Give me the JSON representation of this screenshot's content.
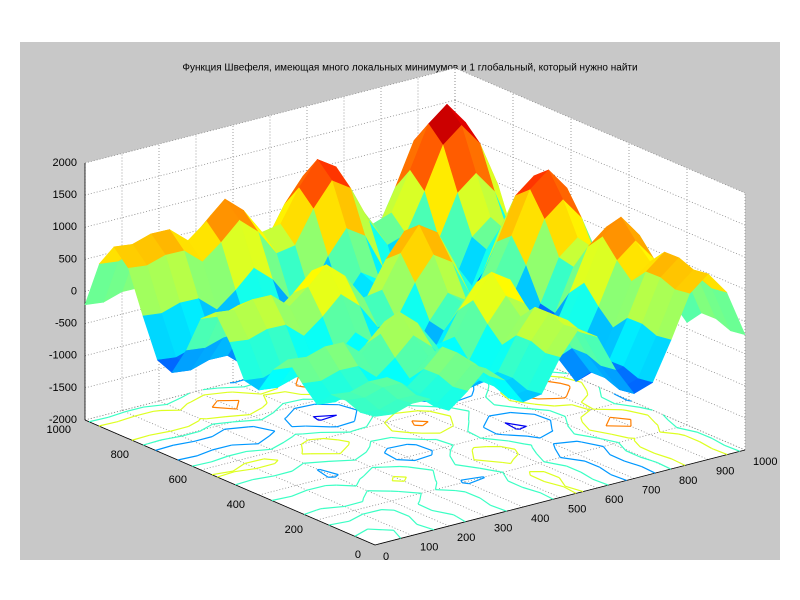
{
  "chart_data": {
    "type": "surface",
    "title": "Функция Швефеля, имеющая много локальных минимумов и 1 глобальный, который нужно найти",
    "x": [
      0,
      50,
      100,
      150,
      200,
      250,
      300,
      350,
      400,
      450,
      500,
      550,
      600,
      650,
      700,
      750,
      800,
      850,
      900,
      950,
      1000
    ],
    "y": [
      0,
      50,
      100,
      150,
      200,
      250,
      300,
      350,
      400,
      450,
      500,
      550,
      600,
      650,
      700,
      750,
      800,
      850,
      900,
      950,
      1000
    ],
    "z": [
      [
        0,
        -35,
        54,
        47,
        -200,
        26,
        300,
        49,
        -365,
        -316,
        181,
        547,
        357,
        -230,
        -679,
        -582,
        8,
        655,
        889,
        532,
        -205
      ],
      [
        -35,
        -70,
        19,
        12,
        -235,
        -9,
        265,
        14,
        -400,
        -351,
        146,
        512,
        322,
        -265,
        -714,
        -617,
        -27,
        620,
        854,
        497,
        -240
      ],
      [
        54,
        19,
        108,
        101,
        -146,
        80,
        354,
        103,
        -311,
        -262,
        235,
        601,
        411,
        -176,
        -625,
        -528,
        62,
        709,
        943,
        586,
        -151
      ],
      [
        47,
        12,
        101,
        94,
        -153,
        73,
        347,
        96,
        -318,
        -269,
        228,
        594,
        404,
        -183,
        -632,
        -535,
        55,
        702,
        936,
        579,
        -158
      ],
      [
        -200,
        -235,
        -146,
        -153,
        -400,
        -174,
        100,
        -151,
        -565,
        -516,
        -19,
        347,
        157,
        -430,
        -879,
        -782,
        -192,
        455,
        689,
        332,
        -405
      ],
      [
        26,
        -9,
        80,
        73,
        -174,
        52,
        326,
        75,
        -339,
        -290,
        207,
        573,
        383,
        -204,
        -653,
        -556,
        34,
        681,
        915,
        558,
        -179
      ],
      [
        300,
        265,
        354,
        347,
        100,
        326,
        600,
        349,
        -65,
        -16,
        481,
        847,
        657,
        70,
        -379,
        -282,
        308,
        955,
        1189,
        832,
        95
      ],
      [
        49,
        14,
        103,
        96,
        -151,
        75,
        349,
        98,
        -316,
        -267,
        230,
        596,
        406,
        -181,
        -630,
        -533,
        57,
        704,
        938,
        581,
        -156
      ],
      [
        -365,
        -400,
        -311,
        -318,
        -565,
        -339,
        -65,
        -316,
        -730,
        -681,
        -184,
        182,
        -8,
        -595,
        -1044,
        -947,
        -357,
        290,
        524,
        167,
        -570
      ],
      [
        -316,
        -351,
        -262,
        -269,
        -516,
        -290,
        -16,
        -267,
        -681,
        -632,
        -135,
        231,
        41,
        -546,
        -995,
        -898,
        -308,
        339,
        573,
        216,
        -521
      ],
      [
        181,
        146,
        235,
        228,
        -19,
        207,
        481,
        230,
        -184,
        -135,
        362,
        728,
        538,
        -49,
        -498,
        -401,
        189,
        836,
        1070,
        713,
        -24
      ],
      [
        547,
        512,
        601,
        594,
        347,
        573,
        847,
        596,
        182,
        231,
        728,
        1094,
        904,
        317,
        -132,
        -35,
        555,
        1202,
        1436,
        1079,
        342
      ],
      [
        357,
        322,
        411,
        404,
        157,
        383,
        657,
        406,
        -8,
        41,
        538,
        904,
        714,
        127,
        -322,
        -225,
        365,
        1012,
        1246,
        889,
        152
      ],
      [
        -230,
        -265,
        -176,
        -183,
        -430,
        -204,
        70,
        -181,
        -595,
        -546,
        -49,
        317,
        127,
        -460,
        -909,
        -812,
        -222,
        425,
        659,
        302,
        -435
      ],
      [
        -679,
        -714,
        -625,
        -632,
        -879,
        -653,
        -379,
        -630,
        -1044,
        -995,
        -498,
        -132,
        -322,
        -909,
        -1358,
        -1261,
        -671,
        -24,
        210,
        -147,
        -884
      ],
      [
        -582,
        -617,
        -528,
        -535,
        -782,
        -556,
        -282,
        -533,
        -947,
        -898,
        -401,
        -35,
        -225,
        -812,
        -1261,
        -1164,
        -574,
        73,
        307,
        -50,
        -787
      ],
      [
        8,
        -27,
        62,
        55,
        -192,
        34,
        308,
        57,
        -357,
        -308,
        189,
        555,
        365,
        -222,
        -671,
        -574,
        16,
        663,
        897,
        540,
        -197
      ],
      [
        655,
        620,
        709,
        702,
        455,
        681,
        955,
        704,
        290,
        339,
        836,
        1202,
        1012,
        425,
        -24,
        73,
        663,
        1310,
        1544,
        1187,
        450
      ],
      [
        889,
        854,
        943,
        936,
        689,
        915,
        1189,
        938,
        524,
        573,
        1070,
        1436,
        1246,
        659,
        210,
        307,
        897,
        1544,
        1778,
        1421,
        684
      ],
      [
        532,
        497,
        586,
        579,
        332,
        558,
        832,
        581,
        167,
        216,
        713,
        1079,
        889,
        302,
        -147,
        -50,
        540,
        1187,
        1421,
        1064,
        327
      ],
      [
        -205,
        -240,
        -151,
        -158,
        -405,
        -179,
        95,
        -156,
        -570,
        -521,
        -24,
        342,
        152,
        -435,
        -884,
        -787,
        -197,
        450,
        684,
        327,
        -410
      ]
    ],
    "xlim": [
      0,
      1000
    ],
    "ylim": [
      0,
      1000
    ],
    "zlim": [
      -2000,
      2000
    ],
    "xticks": [
      0,
      100,
      200,
      300,
      400,
      500,
      600,
      700,
      800,
      900,
      1000
    ],
    "yticks": [
      0,
      200,
      400,
      600,
      800,
      1000
    ],
    "zticks": [
      -2000,
      -1500,
      -1000,
      -500,
      0,
      500,
      1000,
      1500,
      2000
    ],
    "colormap": "jet",
    "contour": true,
    "grid": true
  }
}
